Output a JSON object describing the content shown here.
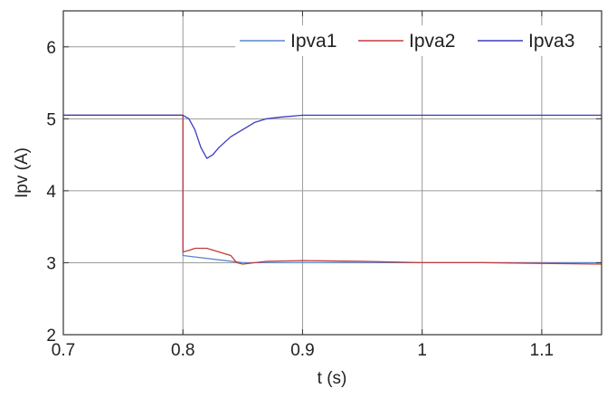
{
  "chart_data": {
    "type": "line",
    "xlabel": "t (s)",
    "ylabel": "Ipv (A)",
    "xlim": [
      0.7,
      1.15
    ],
    "ylim": [
      2,
      6.5
    ],
    "xticks": [
      0.7,
      0.8,
      0.9,
      1,
      1.1
    ],
    "xtick_labels": [
      "0.7",
      "0.8",
      "0.9",
      "1",
      "1.1"
    ],
    "yticks": [
      2,
      3,
      4,
      5,
      6
    ],
    "ytick_labels": [
      "2",
      "3",
      "4",
      "5",
      "6"
    ],
    "grid": true,
    "legend": "top-right",
    "series": [
      {
        "name": "Ipva1",
        "color": "#5a86c8",
        "x": [
          0.7,
          0.8,
          0.8,
          0.85,
          0.9,
          1.0,
          1.15
        ],
        "y": [
          5.05,
          5.05,
          3.1,
          3.0,
          3.0,
          3.0,
          3.0
        ]
      },
      {
        "name": "Ipva2",
        "color": "#c23b3b",
        "x": [
          0.7,
          0.72,
          0.74,
          0.76,
          0.78,
          0.8,
          0.8,
          0.805,
          0.81,
          0.82,
          0.83,
          0.84,
          0.845,
          0.85,
          0.87,
          0.9,
          0.95,
          1.0,
          1.05,
          1.1,
          1.15
        ],
        "y": [
          5.05,
          5.05,
          5.05,
          5.05,
          5.05,
          5.05,
          3.15,
          3.17,
          3.2,
          3.2,
          3.15,
          3.1,
          3.0,
          2.98,
          3.02,
          3.03,
          3.02,
          3.0,
          3.0,
          2.99,
          2.98
        ]
      },
      {
        "name": "Ipva3",
        "color": "#3c3cc0",
        "x": [
          0.7,
          0.72,
          0.74,
          0.76,
          0.78,
          0.8,
          0.805,
          0.81,
          0.815,
          0.82,
          0.825,
          0.83,
          0.84,
          0.85,
          0.86,
          0.87,
          0.88,
          0.9,
          0.95,
          1.0,
          1.05,
          1.1,
          1.15
        ],
        "y": [
          5.05,
          5.05,
          5.05,
          5.05,
          5.05,
          5.05,
          5.0,
          4.85,
          4.6,
          4.45,
          4.5,
          4.6,
          4.75,
          4.85,
          4.95,
          5.0,
          5.02,
          5.05,
          5.05,
          5.05,
          5.05,
          5.05,
          5.05
        ]
      }
    ]
  }
}
